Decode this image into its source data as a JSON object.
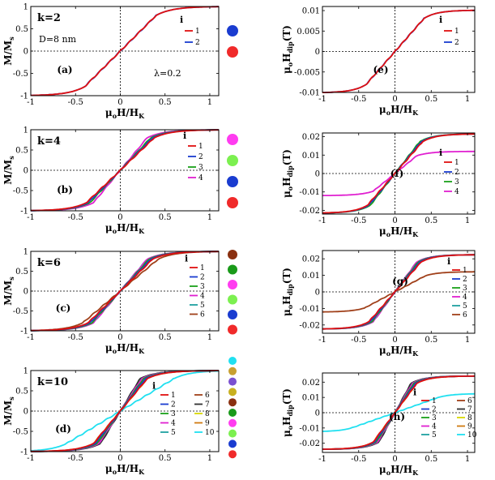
{
  "chart_data": [
    {
      "type": "line",
      "panel": "(a)",
      "k_label": "k=2",
      "extra_label": "D=8 nm",
      "lambda_label": "λ=0.2",
      "ylabel": "M/M",
      "ylabel_sub": "s",
      "xlabel": "μ",
      "xlabel_sub": "o",
      "xlabel_tail": "H/H",
      "xlabel_tail_sub": "K",
      "xlim": [
        -1,
        1.1
      ],
      "ylim": [
        -1,
        1
      ],
      "xticks": [
        "-1",
        "-0.5",
        "0",
        "0.5",
        "1"
      ],
      "yticks": [
        "1",
        "0.5",
        "0",
        "-0.5",
        "-1"
      ],
      "legend_title": "i",
      "series": [
        {
          "name": "1",
          "color": "#e01010",
          "sat": 1.0,
          "hk": 0.4
        },
        {
          "name": "2",
          "color": "#1a3cd0",
          "sat": 1.0,
          "hk": 0.4
        }
      ],
      "dot_colors": [
        "#1a3cd0",
        "#f02a2a"
      ]
    },
    {
      "type": "line",
      "panel": "(e)",
      "ylabel": "μ",
      "ylabel_sub": "o",
      "ylabel_tail": "H",
      "ylabel_tail_sub": "dip",
      "ylabel_unit": "(T)",
      "xlabel": "μ",
      "xlabel_sub": "o",
      "xlabel_tail": "H/H",
      "xlabel_tail_sub": "K",
      "xlim": [
        -1,
        1.1
      ],
      "ylim": [
        -0.01,
        0.011
      ],
      "xticks": [
        "-1",
        "-0.5",
        "0",
        "0.5",
        "1"
      ],
      "yticks": [
        "0.01",
        "0.005",
        "0",
        "-0.005",
        "-0.01"
      ],
      "legend_title": "i",
      "series": [
        {
          "name": "1",
          "color": "#e01010",
          "sat": 0.0101,
          "hk": 0.4
        },
        {
          "name": "2",
          "color": "#1a3cd0",
          "sat": 0.0101,
          "hk": 0.4
        }
      ]
    },
    {
      "type": "line",
      "panel": "(b)",
      "k_label": "k=4",
      "ylabel": "M/M",
      "ylabel_sub": "s",
      "xlabel": "μ",
      "xlabel_sub": "o",
      "xlabel_tail": "H/H",
      "xlabel_tail_sub": "K",
      "xlim": [
        -1,
        1.1
      ],
      "ylim": [
        -1,
        1
      ],
      "xticks": [
        "-1",
        "-0.5",
        "0",
        "0.5",
        "1"
      ],
      "yticks": [
        "1",
        "0.5",
        "0",
        "-0.5",
        "-1"
      ],
      "legend_title": "i",
      "series": [
        {
          "name": "1",
          "color": "#e01010",
          "sat": 1.0,
          "hk": 0.38
        },
        {
          "name": "2",
          "color": "#1a3cd0",
          "sat": 1.0,
          "hk": 0.36
        },
        {
          "name": "3",
          "color": "#1aa01a",
          "sat": 1.0,
          "hk": 0.34
        },
        {
          "name": "4",
          "color": "#e020d0",
          "sat": 1.0,
          "hk": 0.3
        }
      ],
      "dot_colors": [
        "#ff3cf0",
        "#7cf050",
        "#1a3cd0",
        "#f02a2a"
      ]
    },
    {
      "type": "line",
      "panel": "(f)",
      "ylabel": "μ",
      "ylabel_sub": "o",
      "ylabel_tail": "H",
      "ylabel_tail_sub": "dip",
      "ylabel_unit": "(T)",
      "xlabel": "μ",
      "xlabel_sub": "o",
      "xlabel_tail": "H/H",
      "xlabel_tail_sub": "K",
      "xlim": [
        -1,
        1.1
      ],
      "ylim": [
        -0.022,
        0.022
      ],
      "xticks": [
        "-1",
        "-0.5",
        "0",
        "0.5",
        "1"
      ],
      "yticks": [
        "0.02",
        "0.01",
        "0",
        "-0.01",
        "-0.02"
      ],
      "legend_title": "i",
      "series": [
        {
          "name": "1",
          "color": "#e01010",
          "sat": 0.0215,
          "hk": 0.38
        },
        {
          "name": "2",
          "color": "#1a3cd0",
          "sat": 0.0215,
          "hk": 0.36
        },
        {
          "name": "3",
          "color": "#1aa01a",
          "sat": 0.0215,
          "hk": 0.34
        },
        {
          "name": "4",
          "color": "#e020d0",
          "sat": 0.012,
          "hk": 0.3
        }
      ]
    },
    {
      "type": "line",
      "panel": "(c)",
      "k_label": "k=6",
      "ylabel": "M/M",
      "ylabel_sub": "s",
      "xlabel": "μ",
      "xlabel_sub": "o",
      "xlabel_tail": "H/H",
      "xlabel_tail_sub": "K",
      "xlim": [
        -1,
        1.1
      ],
      "ylim": [
        -1,
        1
      ],
      "xticks": [
        "-1",
        "-0.5",
        "0",
        "0.5",
        "1"
      ],
      "yticks": [
        "1",
        "0.5",
        "0",
        "-0.5",
        "-1"
      ],
      "legend_title": "i",
      "series": [
        {
          "name": "1",
          "color": "#e01010",
          "sat": 1.0,
          "hk": 0.36
        },
        {
          "name": "2",
          "color": "#1a3cd0",
          "sat": 1.0,
          "hk": 0.34
        },
        {
          "name": "3",
          "color": "#1aa01a",
          "sat": 1.0,
          "hk": 0.32
        },
        {
          "name": "4",
          "color": "#e020d0",
          "sat": 1.0,
          "hk": 0.3
        },
        {
          "name": "5",
          "color": "#20a0a0",
          "sat": 1.0,
          "hk": 0.3
        },
        {
          "name": "6",
          "color": "#a0401a",
          "sat": 1.0,
          "hk": 0.42
        }
      ],
      "dot_colors": [
        "#8a3010",
        "#1a9a1a",
        "#ff3cf0",
        "#7cf050",
        "#1a3cd0",
        "#f02a2a"
      ]
    },
    {
      "type": "line",
      "panel": "(g)",
      "ylabel": "μ",
      "ylabel_sub": "o",
      "ylabel_tail": "H",
      "ylabel_tail_sub": "dip",
      "ylabel_unit": "(T)",
      "xlabel": "μ",
      "xlabel_sub": "o",
      "xlabel_tail": "H/H",
      "xlabel_tail_sub": "K",
      "xlim": [
        -1,
        1.1
      ],
      "ylim": [
        -0.025,
        0.025
      ],
      "xticks": [
        "-1",
        "-0.5",
        "0",
        "0.5",
        "1"
      ],
      "yticks": [
        "0.02",
        "0.01",
        "0",
        "-0.01",
        "-0.02"
      ],
      "legend_title": "i",
      "series": [
        {
          "name": "1",
          "color": "#e01010",
          "sat": 0.0225,
          "hk": 0.36
        },
        {
          "name": "2",
          "color": "#1a3cd0",
          "sat": 0.0225,
          "hk": 0.34
        },
        {
          "name": "3",
          "color": "#1aa01a",
          "sat": 0.0225,
          "hk": 0.32
        },
        {
          "name": "4",
          "color": "#e020d0",
          "sat": 0.0225,
          "hk": 0.3
        },
        {
          "name": "5",
          "color": "#20a0a0",
          "sat": 0.0225,
          "hk": 0.3
        },
        {
          "name": "6",
          "color": "#a0401a",
          "sat": 0.0122,
          "hk": 0.42
        }
      ]
    },
    {
      "type": "line",
      "panel": "(d)",
      "k_label": "k=10",
      "ylabel": "M/M",
      "ylabel_sub": "s",
      "xlabel": "μ",
      "xlabel_sub": "o",
      "xlabel_tail": "H/H",
      "xlabel_tail_sub": "K",
      "xlim": [
        -1,
        1.1
      ],
      "ylim": [
        -1,
        1
      ],
      "xticks": [
        "-1",
        "-0.5",
        "0",
        "0.5",
        "1"
      ],
      "yticks": [
        "1",
        "0.5",
        "0",
        "-0.5",
        "-1"
      ],
      "legend_title": "i",
      "series": [
        {
          "name": "1",
          "color": "#e01010",
          "sat": 1.0,
          "hk": 0.3
        },
        {
          "name": "2",
          "color": "#1a3cd0",
          "sat": 1.0,
          "hk": 0.28
        },
        {
          "name": "3",
          "color": "#1aa01a",
          "sat": 1.0,
          "hk": 0.26
        },
        {
          "name": "4",
          "color": "#e020d0",
          "sat": 1.0,
          "hk": 0.24
        },
        {
          "name": "5",
          "color": "#20a0a0",
          "sat": 1.0,
          "hk": 0.24
        },
        {
          "name": "6",
          "color": "#a0401a",
          "sat": 1.0,
          "hk": 0.26
        },
        {
          "name": "7",
          "color": "#303030",
          "sat": 1.0,
          "hk": 0.22
        },
        {
          "name": "8",
          "color": "#d8d800",
          "sat": 1.0,
          "hk": 0.24
        },
        {
          "name": "9",
          "color": "#d07a10",
          "sat": 1.0,
          "hk": 0.3
        },
        {
          "name": "10",
          "color": "#20e0f0",
          "sat": 1.0,
          "hk": 0.6
        }
      ],
      "dot_colors": [
        "#20e0f0",
        "#c8a030",
        "#7a50d0",
        "#c8b020",
        "#8a3010",
        "#1a9a1a",
        "#ff3cf0",
        "#7cf050",
        "#1a3cd0",
        "#f02a2a"
      ]
    },
    {
      "type": "line",
      "panel": "(h)",
      "ylabel": "μ",
      "ylabel_sub": "o",
      "ylabel_tail": "H",
      "ylabel_tail_sub": "dip",
      "ylabel_unit": "(T)",
      "xlabel": "μ",
      "xlabel_sub": "o",
      "xlabel_tail": "H/H",
      "xlabel_tail_sub": "K",
      "xlim": [
        -1,
        1.1
      ],
      "ylim": [
        -0.026,
        0.026
      ],
      "xticks": [
        "-1",
        "-0.5",
        "0",
        "0.5",
        "1"
      ],
      "yticks": [
        "0.02",
        "0.01",
        "0",
        "-0.01",
        "-0.02"
      ],
      "legend_title": "i",
      "series": [
        {
          "name": "1",
          "color": "#e01010",
          "sat": 0.024,
          "hk": 0.3
        },
        {
          "name": "2",
          "color": "#1a3cd0",
          "sat": 0.024,
          "hk": 0.28
        },
        {
          "name": "3",
          "color": "#1aa01a",
          "sat": 0.024,
          "hk": 0.26
        },
        {
          "name": "4",
          "color": "#e020d0",
          "sat": 0.024,
          "hk": 0.24
        },
        {
          "name": "5",
          "color": "#20a0a0",
          "sat": 0.024,
          "hk": 0.24
        },
        {
          "name": "6",
          "color": "#a0401a",
          "sat": 0.024,
          "hk": 0.26
        },
        {
          "name": "7",
          "color": "#303030",
          "sat": 0.024,
          "hk": 0.22
        },
        {
          "name": "8",
          "color": "#d8d800",
          "sat": 0.024,
          "hk": 0.24
        },
        {
          "name": "9",
          "color": "#d07a10",
          "sat": 0.024,
          "hk": 0.3
        },
        {
          "name": "10",
          "color": "#20e0f0",
          "sat": 0.0125,
          "hk": 0.6
        }
      ]
    }
  ]
}
